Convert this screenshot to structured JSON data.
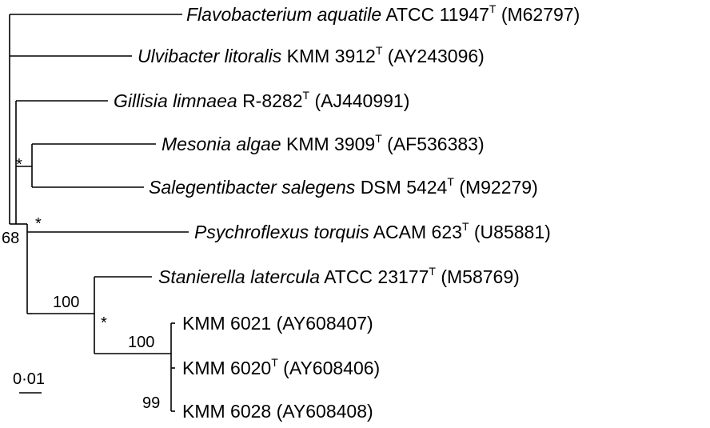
{
  "tree": {
    "taxa": [
      {
        "id": "flavo",
        "species": "Flavobacterium aquatile",
        "strain": "ATCC 11947",
        "type_strain": true,
        "accession": "(M62797)"
      },
      {
        "id": "ulvi",
        "species": "Ulvibacter litoralis",
        "strain": "KMM 3912",
        "type_strain": true,
        "accession": "(AY243096)"
      },
      {
        "id": "gillisia",
        "species": "Gillisia limnaea",
        "strain": "R-8282",
        "type_strain": true,
        "accession": "(AJ440991)"
      },
      {
        "id": "mesonia",
        "species": "Mesonia algae",
        "strain": "KMM 3909",
        "type_strain": true,
        "accession": "(AF536383)"
      },
      {
        "id": "salegenti",
        "species": "Salegentibacter salegens",
        "strain": "DSM 5424",
        "type_strain": true,
        "accession": "(M92279)"
      },
      {
        "id": "psychro",
        "species": "Psychroflexus torquis",
        "strain": "ACAM 623",
        "type_strain": true,
        "accession": "(U85881)"
      },
      {
        "id": "stani",
        "species": "Stanierella latercula",
        "strain": "ATCC 23177",
        "type_strain": true,
        "accession": "(M58769)"
      },
      {
        "id": "kmm6021",
        "species": "",
        "strain": "KMM 6021",
        "type_strain": false,
        "accession": "(AY608407)"
      },
      {
        "id": "kmm6020",
        "species": "",
        "strain": "KMM 6020",
        "type_strain": true,
        "accession": "(AY608406)"
      },
      {
        "id": "kmm6028",
        "species": "",
        "strain": "KMM 6028",
        "type_strain": false,
        "accession": "(AY608408)"
      }
    ],
    "type_strain_mark": "T",
    "support_values": [
      {
        "id": "root-inner",
        "value": "68"
      },
      {
        "id": "mesonia-salegenti",
        "value": "*"
      },
      {
        "id": "psychro-node",
        "value": "*"
      },
      {
        "id": "stani-kmm",
        "value": "100"
      },
      {
        "id": "kmm-node",
        "value": "*"
      },
      {
        "id": "kmm-clade",
        "value": "100"
      },
      {
        "id": "kmm6020-6028",
        "value": "99"
      }
    ],
    "scale_bar": {
      "label": "0·01"
    }
  }
}
